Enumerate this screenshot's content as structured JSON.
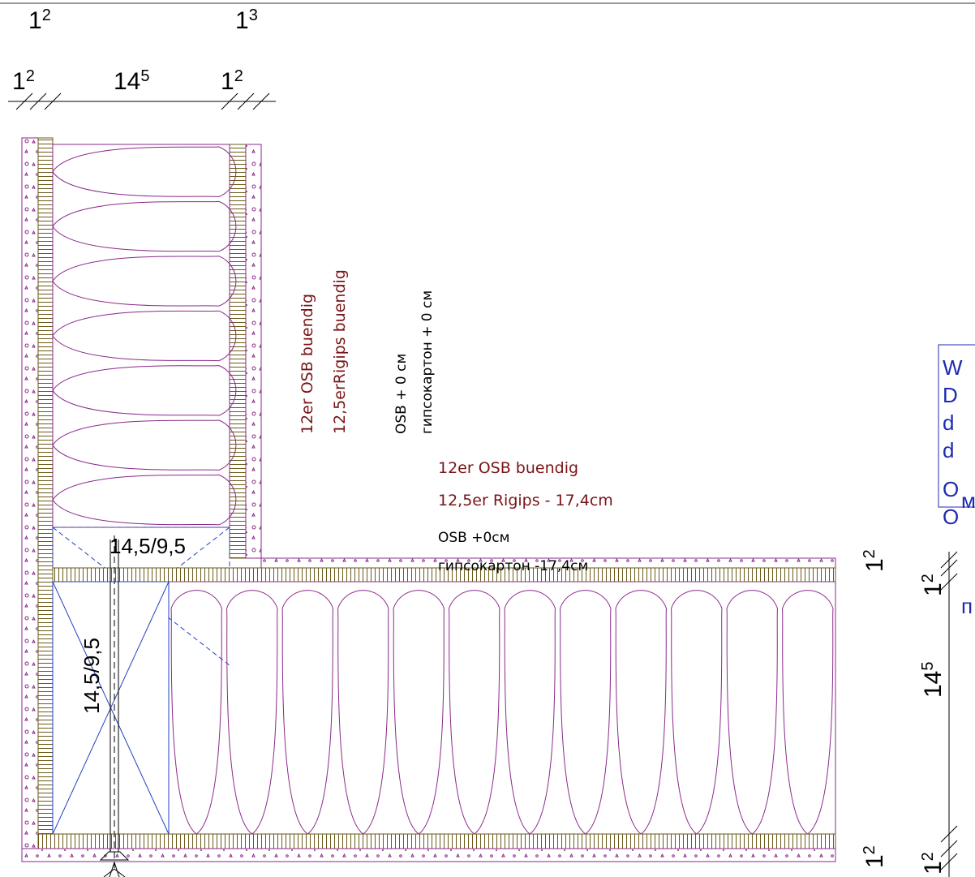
{
  "dimensions_top": [
    {
      "main": "1",
      "sup": "2"
    },
    {
      "main": "1",
      "sup": "3"
    }
  ],
  "dimensions_row": [
    {
      "main": "1",
      "sup": "2"
    },
    {
      "main": "14",
      "sup": "5"
    },
    {
      "main": "1",
      "sup": "2"
    }
  ],
  "dimensions_right": [
    {
      "main": "1",
      "sup": "2"
    },
    {
      "main": "1",
      "sup": "2"
    },
    {
      "main": "14",
      "sup": "5"
    },
    {
      "main": "1",
      "sup": "2"
    },
    {
      "main": "1",
      "sup": "2"
    }
  ],
  "vertical_notes": [
    "12er OSB buendig",
    "12,5erRigips buendig",
    "OSB  + 0 см",
    "гипсокартон + 0 см"
  ],
  "horizontal_notes": [
    "12er OSB buendig",
    "12,5er Rigips - 17,4cm",
    "OSB  +0см",
    "гипсокартон -17,4см"
  ],
  "timber_labels": [
    "14,5/9,5",
    "14,5/9,5"
  ],
  "panel_lines": [
    "W",
    "D",
    "d",
    "d",
    "O",
    "O",
    "м",
    "п"
  ]
}
